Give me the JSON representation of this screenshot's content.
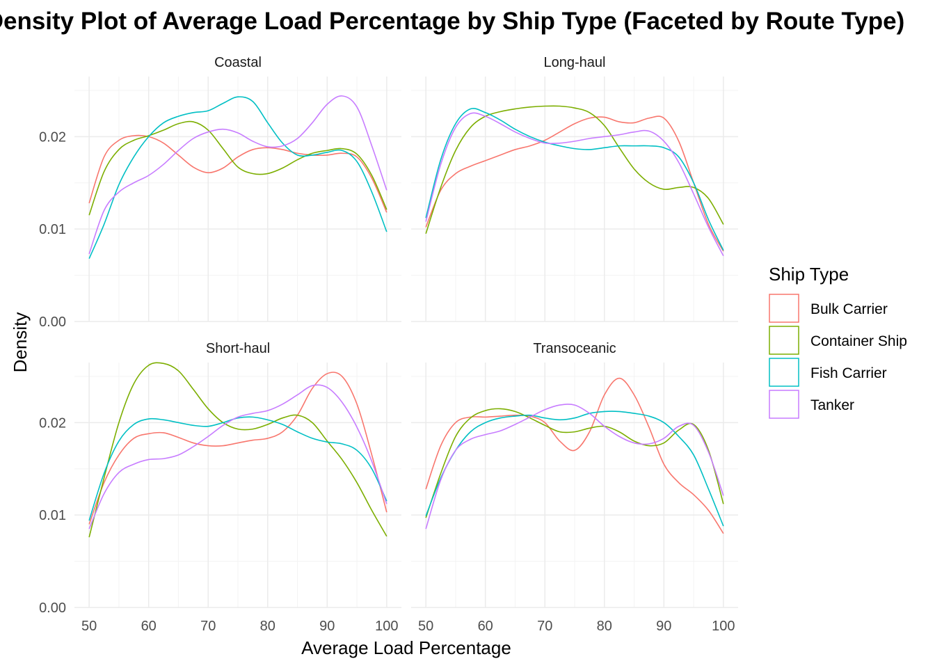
{
  "chart_data": {
    "type": "line",
    "title": "Density Plot of Average Load Percentage by Ship Type (Faceted by Route Type)",
    "xlabel": "Average Load Percentage",
    "ylabel": "Density",
    "xlim": [
      50,
      100
    ],
    "ylim": [
      0,
      0.0265
    ],
    "x_ticks": [
      50,
      60,
      70,
      80,
      90,
      100
    ],
    "x_tick_labels": [
      "50",
      "60",
      "70",
      "80",
      "90",
      "100"
    ],
    "y_ticks": [
      0,
      0.01,
      0.02
    ],
    "y_tick_labels": [
      "0.00",
      "0.01",
      "0.02"
    ],
    "grid": true,
    "legend": {
      "title": "Ship Type",
      "position": "right",
      "entries": [
        {
          "name": "Bulk Carrier",
          "color": "#F8766D"
        },
        {
          "name": "Container Ship",
          "color": "#7CAE00"
        },
        {
          "name": "Fish Carrier",
          "color": "#00BFC4"
        },
        {
          "name": "Tanker",
          "color": "#C77CFF"
        }
      ]
    },
    "x": [
      50,
      52.5,
      55,
      57.5,
      60,
      62.5,
      65,
      67.5,
      70,
      72.5,
      75,
      77.5,
      80,
      82.5,
      85,
      87.5,
      90,
      92.5,
      95,
      97.5,
      100
    ],
    "facets": [
      {
        "name": "Coastal",
        "series": [
          {
            "name": "Bulk Carrier",
            "values": [
              0.0128,
              0.0178,
              0.0196,
              0.0201,
              0.02,
              0.0193,
              0.018,
              0.0167,
              0.0161,
              0.0166,
              0.0178,
              0.0186,
              0.0188,
              0.0186,
              0.0182,
              0.018,
              0.018,
              0.0182,
              0.0178,
              0.0155,
              0.0118
            ]
          },
          {
            "name": "Container Ship",
            "values": [
              0.0115,
              0.0162,
              0.0186,
              0.0196,
              0.0201,
              0.0207,
              0.0214,
              0.0216,
              0.0207,
              0.0187,
              0.0167,
              0.016,
              0.016,
              0.0166,
              0.0175,
              0.0182,
              0.0185,
              0.0187,
              0.0181,
              0.0158,
              0.0121
            ]
          },
          {
            "name": "Fish Carrier",
            "values": [
              0.0068,
              0.0105,
              0.0148,
              0.0178,
              0.02,
              0.0215,
              0.0222,
              0.0226,
              0.0228,
              0.0236,
              0.0243,
              0.0238,
              0.0215,
              0.0193,
              0.018,
              0.018,
              0.0183,
              0.0185,
              0.0173,
              0.014,
              0.0097
            ]
          },
          {
            "name": "Tanker",
            "values": [
              0.0073,
              0.012,
              0.014,
              0.015,
              0.0158,
              0.017,
              0.0185,
              0.0198,
              0.0205,
              0.0208,
              0.0204,
              0.0195,
              0.0189,
              0.019,
              0.0198,
              0.0215,
              0.0235,
              0.0244,
              0.0232,
              0.019,
              0.0142
            ]
          }
        ]
      },
      {
        "name": "Long-haul",
        "series": [
          {
            "name": "Bulk Carrier",
            "values": [
              0.0102,
              0.0142,
              0.016,
              0.0168,
              0.0174,
              0.018,
              0.0186,
              0.019,
              0.0196,
              0.0205,
              0.0214,
              0.022,
              0.0221,
              0.0216,
              0.0215,
              0.022,
              0.022,
              0.0195,
              0.015,
              0.0105,
              0.0076
            ]
          },
          {
            "name": "Container Ship",
            "values": [
              0.0095,
              0.0145,
              0.0185,
              0.021,
              0.0222,
              0.0227,
              0.023,
              0.0232,
              0.0233,
              0.0233,
              0.0231,
              0.0226,
              0.0212,
              0.0188,
              0.0165,
              0.015,
              0.0143,
              0.0145,
              0.0145,
              0.0133,
              0.0105
            ]
          },
          {
            "name": "Fish Carrier",
            "values": [
              0.0112,
              0.0175,
              0.0214,
              0.023,
              0.0226,
              0.0218,
              0.0208,
              0.02,
              0.0194,
              0.019,
              0.0187,
              0.0186,
              0.0188,
              0.019,
              0.019,
              0.019,
              0.0188,
              0.0178,
              0.015,
              0.011,
              0.0077
            ]
          },
          {
            "name": "Tanker",
            "values": [
              0.0108,
              0.017,
              0.021,
              0.0225,
              0.0222,
              0.0214,
              0.0205,
              0.0198,
              0.0193,
              0.0193,
              0.0195,
              0.0198,
              0.02,
              0.0202,
              0.0205,
              0.0206,
              0.0195,
              0.0172,
              0.0138,
              0.0102,
              0.0071
            ]
          }
        ]
      },
      {
        "name": "Short-haul",
        "series": [
          {
            "name": "Bulk Carrier",
            "values": [
              0.009,
              0.0135,
              0.0165,
              0.0183,
              0.0188,
              0.0189,
              0.0184,
              0.0178,
              0.0175,
              0.0175,
              0.0178,
              0.0181,
              0.0183,
              0.019,
              0.0208,
              0.0237,
              0.0253,
              0.025,
              0.022,
              0.0165,
              0.0103
            ]
          },
          {
            "name": "Container Ship",
            "values": [
              0.0076,
              0.014,
              0.02,
              0.0242,
              0.0262,
              0.0264,
              0.0256,
              0.0236,
              0.0215,
              0.02,
              0.0193,
              0.0193,
              0.0198,
              0.0205,
              0.0208,
              0.02,
              0.018,
              0.016,
              0.0135,
              0.0105,
              0.0077
            ]
          },
          {
            "name": "Fish Carrier",
            "values": [
              0.0094,
              0.0145,
              0.018,
              0.0198,
              0.0204,
              0.0203,
              0.02,
              0.0197,
              0.0196,
              0.02,
              0.0205,
              0.0206,
              0.0203,
              0.0198,
              0.019,
              0.0183,
              0.0179,
              0.0177,
              0.017,
              0.015,
              0.0115
            ]
          },
          {
            "name": "Tanker",
            "values": [
              0.0085,
              0.0123,
              0.0146,
              0.0155,
              0.016,
              0.0161,
              0.0165,
              0.0174,
              0.0185,
              0.0197,
              0.0206,
              0.021,
              0.0213,
              0.022,
              0.023,
              0.024,
              0.0238,
              0.0222,
              0.0195,
              0.0158,
              0.0112
            ]
          }
        ]
      },
      {
        "name": "Transoceanic",
        "series": [
          {
            "name": "Bulk Carrier",
            "values": [
              0.0128,
              0.0175,
              0.02,
              0.0206,
              0.0206,
              0.0207,
              0.0208,
              0.0207,
              0.02,
              0.018,
              0.017,
              0.019,
              0.023,
              0.0248,
              0.023,
              0.0195,
              0.0155,
              0.0135,
              0.0122,
              0.0105,
              0.008
            ]
          },
          {
            "name": "Container Ship",
            "values": [
              0.0097,
              0.0145,
              0.0185,
              0.0205,
              0.0213,
              0.0215,
              0.0212,
              0.0205,
              0.0197,
              0.019,
              0.019,
              0.0194,
              0.0196,
              0.019,
              0.018,
              0.0175,
              0.0178,
              0.0192,
              0.0198,
              0.017,
              0.0112
            ]
          },
          {
            "name": "Fish Carrier",
            "values": [
              0.0099,
              0.014,
              0.017,
              0.019,
              0.02,
              0.0205,
              0.0207,
              0.0208,
              0.0205,
              0.0203,
              0.0205,
              0.021,
              0.0212,
              0.0212,
              0.021,
              0.0207,
              0.02,
              0.0185,
              0.0165,
              0.0128,
              0.0088
            ]
          },
          {
            "name": "Tanker",
            "values": [
              0.0085,
              0.0138,
              0.017,
              0.0182,
              0.0187,
              0.0191,
              0.0198,
              0.0206,
              0.0214,
              0.0219,
              0.0219,
              0.021,
              0.0196,
              0.0185,
              0.0178,
              0.0177,
              0.0183,
              0.0196,
              0.0197,
              0.0168,
              0.0121
            ]
          }
        ]
      }
    ]
  }
}
